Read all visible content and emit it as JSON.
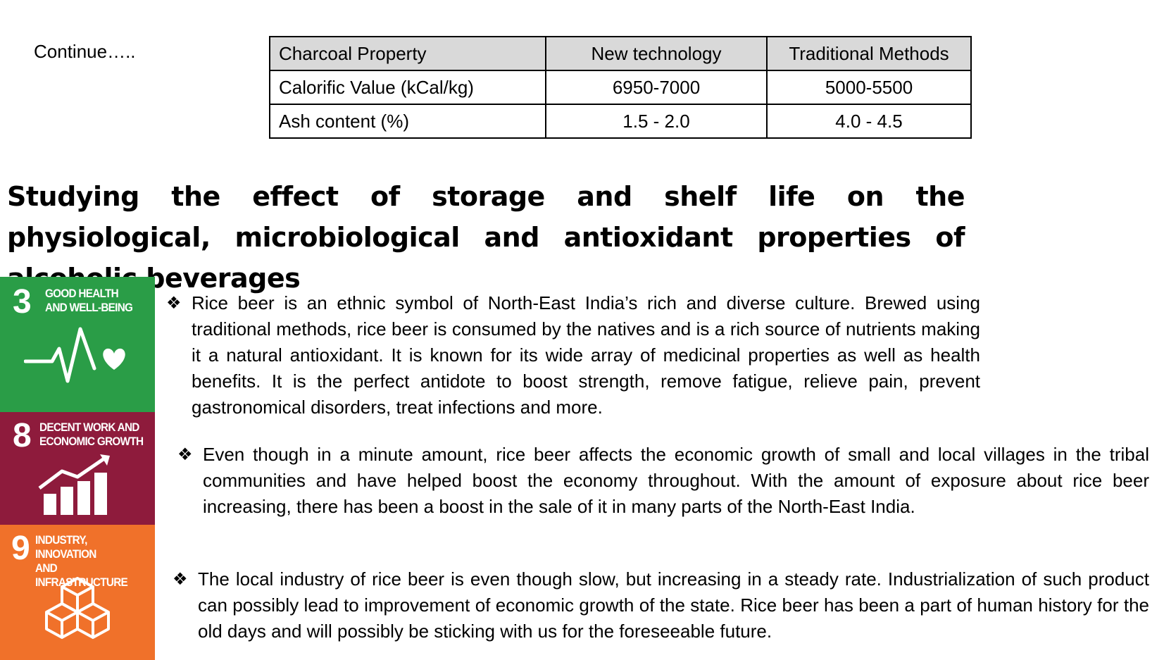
{
  "continue_label": "Continue…..",
  "table": {
    "headers": [
      "Charcoal Property",
      "New technology",
      "Traditional Methods"
    ],
    "rows": [
      [
        "Calorific Value (kCal/kg)",
        "6950-7000",
        "5000-5500"
      ],
      [
        "Ash content (%)",
        "1.5 - 2.0",
        "4.0 - 4.5"
      ]
    ],
    "header_bg": "#d9d9d9"
  },
  "heading": "Studying the effect of storage and shelf life on the physiological, microbiological and antioxidant properties of alcoholic beverages",
  "sdg": [
    {
      "number": "3",
      "line1": "GOOD HEALTH",
      "line2": "AND WELL-BEING",
      "color": "#2a9d47",
      "icon": "heartbeat-icon"
    },
    {
      "number": "8",
      "line1": "DECENT WORK AND",
      "line2": "ECONOMIC GROWTH",
      "color": "#8e1b3c",
      "icon": "growth-chart-icon"
    },
    {
      "number": "9",
      "line1": "INDUSTRY, INNOVATION",
      "line2": "AND INFRASTRUCTURE",
      "color": "#f0712a",
      "icon": "cubes-icon"
    }
  ],
  "bullet_symbol": "❖",
  "bullets": [
    "Rice beer is an ethnic symbol of North-East India’s rich and diverse culture. Brewed using traditional methods, rice beer is consumed by the natives and is a rich source of nutrients making it a natural antioxidant. It is known for its wide array of medicinal properties as well as health benefits. It is the perfect antidote to boost strength, remove fatigue, relieve pain, prevent gastronomical disorders, treat infections and more.",
    "Even though in a minute amount, rice beer affects the economic growth of small and local villages in the tribal communities and have helped boost the economy throughout. With the amount of exposure about rice beer increasing, there has been a boost in the sale of it in many parts of the North-East India.",
    "The local industry of rice beer is even though slow, but increasing in a steady rate. Industrialization of such product can possibly lead to improvement of economic growth of the state. Rice beer has been a part of human history for the old days and will possibly be sticking with us for the foreseeable future."
  ]
}
